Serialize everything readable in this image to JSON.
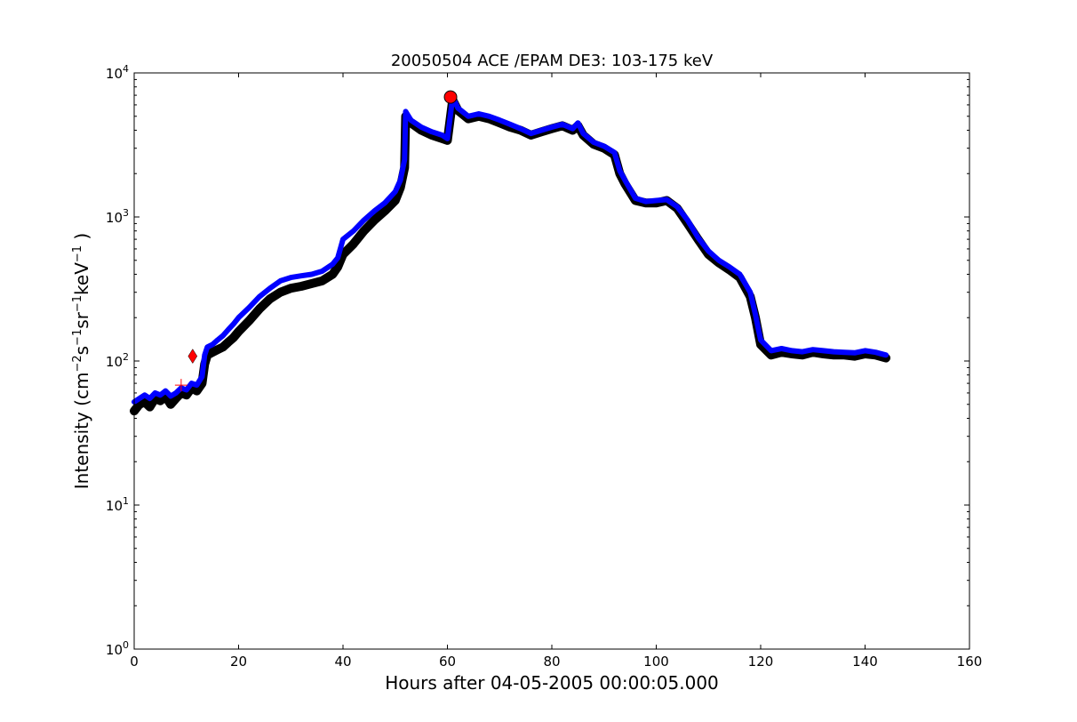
{
  "chart_data": {
    "type": "line",
    "title": "20050504 ACE /EPAM DE3: 103-175 keV",
    "xlabel": "Hours after 04-05-2005 00:00:05.000",
    "ylabel": "Intensity (cm⁻² s⁻¹ sr⁻¹ keV⁻¹ )",
    "ylabel_parts": [
      {
        "t": "Intensity (cm",
        "sup": false
      },
      {
        "t": "−2",
        "sup": true
      },
      {
        "t": "s",
        "sup": false
      },
      {
        "t": "−1",
        "sup": true
      },
      {
        "t": "sr",
        "sup": false
      },
      {
        "t": "−1",
        "sup": true
      },
      {
        "t": "keV",
        "sup": false
      },
      {
        "t": "−1",
        "sup": true
      },
      {
        "t": " )",
        "sup": false
      }
    ],
    "x_scale": "linear",
    "y_scale": "log",
    "xlim": [
      0,
      160
    ],
    "ylim": [
      1,
      10000
    ],
    "xticks": [
      0,
      20,
      40,
      60,
      80,
      100,
      120,
      140,
      160
    ],
    "yticks": [
      {
        "value": 1,
        "base": "10",
        "exp": "0"
      },
      {
        "value": 10,
        "base": "10",
        "exp": "1"
      },
      {
        "value": 100,
        "base": "10",
        "exp": "2"
      },
      {
        "value": 1000,
        "base": "10",
        "exp": "3"
      },
      {
        "value": 10000,
        "base": "10",
        "exp": "4"
      }
    ],
    "grid": false,
    "legend": "none",
    "series": [
      {
        "color": "#000000",
        "x": [
          0,
          1,
          2,
          3,
          4,
          5,
          6,
          7,
          8,
          9,
          10,
          11,
          12,
          13,
          13.5,
          14,
          15,
          16,
          17,
          18,
          19,
          20,
          22,
          24,
          26,
          28,
          30,
          32,
          34,
          36,
          38,
          39,
          40,
          42,
          44,
          46,
          48,
          50,
          51,
          51.8,
          52,
          53,
          55,
          57,
          59,
          60,
          61,
          62,
          64,
          66,
          68,
          70,
          72,
          74,
          76,
          78,
          80,
          82,
          84,
          85,
          86,
          88,
          90,
          92,
          93,
          94,
          96,
          98,
          100,
          102,
          104,
          106,
          108,
          110,
          112,
          114,
          116,
          118,
          119,
          120,
          122,
          124,
          126,
          128,
          130,
          132,
          134,
          136,
          138,
          140,
          142,
          144
        ],
        "y": [
          45,
          50,
          52,
          48,
          55,
          53,
          57,
          50,
          55,
          60,
          58,
          65,
          62,
          70,
          95,
          110,
          115,
          120,
          125,
          135,
          145,
          160,
          190,
          230,
          270,
          300,
          320,
          330,
          345,
          360,
          400,
          450,
          550,
          650,
          800,
          950,
          1100,
          1300,
          1600,
          2200,
          5000,
          4500,
          4000,
          3700,
          3500,
          3400,
          6500,
          5500,
          4800,
          5000,
          4800,
          4500,
          4200,
          4000,
          3700,
          3900,
          4100,
          4300,
          4000,
          4300,
          3700,
          3200,
          3000,
          2700,
          2000,
          1700,
          1300,
          1250,
          1250,
          1300,
          1150,
          900,
          700,
          550,
          480,
          430,
          380,
          280,
          200,
          130,
          110,
          115,
          112,
          110,
          115,
          112,
          110,
          110,
          108,
          112,
          110,
          105
        ]
      },
      {
        "color": "#0000ff",
        "x": [
          0,
          1,
          2,
          3,
          4,
          5,
          6,
          7,
          8,
          9,
          10,
          11,
          12,
          13,
          13.5,
          14,
          15,
          16,
          17,
          18,
          19,
          20,
          22,
          24,
          26,
          28,
          30,
          32,
          34,
          36,
          38,
          39,
          40,
          42,
          44,
          46,
          48,
          50,
          51,
          51.8,
          52,
          53,
          55,
          57,
          59,
          60,
          61,
          62,
          64,
          66,
          68,
          70,
          72,
          74,
          76,
          78,
          80,
          82,
          84,
          85,
          86,
          88,
          90,
          92,
          93,
          94,
          96,
          98,
          100,
          102,
          104,
          106,
          108,
          110,
          112,
          114,
          116,
          118,
          119,
          120,
          122,
          124,
          126,
          128,
          130,
          132,
          134,
          136,
          138,
          140,
          142,
          144
        ],
        "y": [
          52,
          55,
          58,
          55,
          60,
          58,
          62,
          57,
          60,
          65,
          63,
          70,
          68,
          78,
          110,
          125,
          130,
          140,
          150,
          165,
          180,
          200,
          235,
          280,
          320,
          360,
          380,
          390,
          400,
          420,
          470,
          520,
          700,
          800,
          950,
          1100,
          1250,
          1500,
          1800,
          2500,
          5400,
          4700,
          4200,
          3900,
          3700,
          3500,
          6800,
          5700,
          5000,
          5200,
          5000,
          4700,
          4400,
          4100,
          3800,
          4000,
          4200,
          4400,
          4100,
          4500,
          3800,
          3300,
          3100,
          2800,
          2100,
          1800,
          1350,
          1280,
          1300,
          1320,
          1180,
          950,
          720,
          580,
          500,
          450,
          400,
          300,
          210,
          140,
          118,
          122,
          118,
          116,
          120,
          118,
          116,
          115,
          114,
          118,
          115,
          110
        ]
      }
    ],
    "markers": [
      {
        "shape": "plus",
        "x": 9,
        "y": 68,
        "color": "#ff0000"
      },
      {
        "shape": "diamond",
        "x": 11.2,
        "y": 108,
        "color": "#ff0000"
      },
      {
        "shape": "circle",
        "x": 60.6,
        "y": 6800,
        "color": "#ff0000"
      }
    ]
  }
}
